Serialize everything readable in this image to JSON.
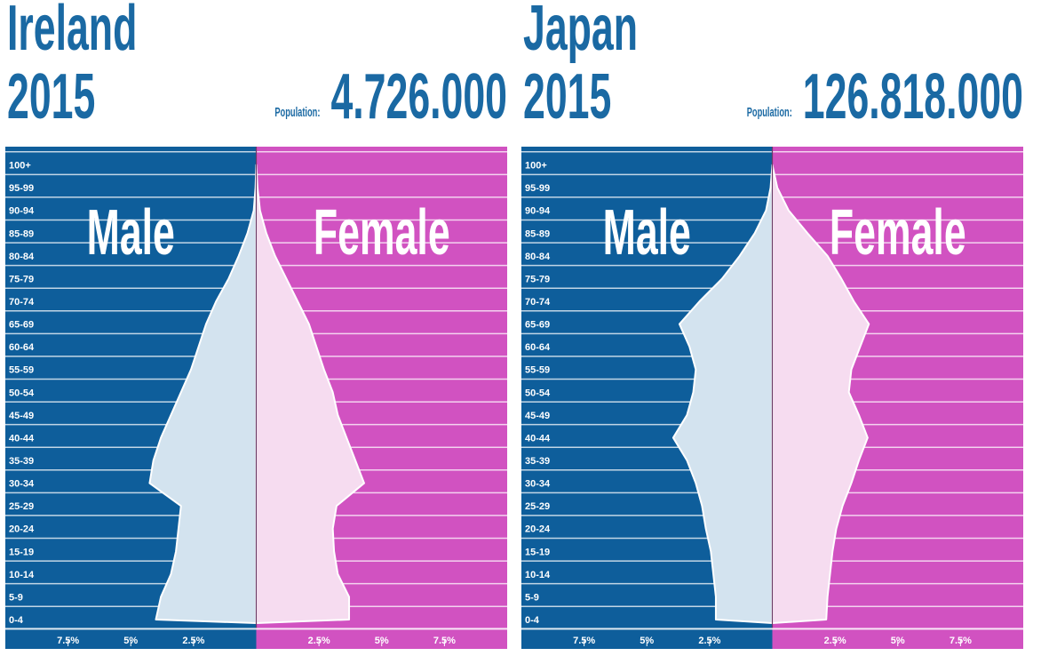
{
  "chart_data": [
    {
      "type": "pyramid",
      "title": "Ireland",
      "subtitle": "2015",
      "population_label": "Population:",
      "population": "4.726.000",
      "categories": [
        "0-4",
        "5-9",
        "10-14",
        "15-19",
        "20-24",
        "25-29",
        "30-34",
        "35-39",
        "40-44",
        "45-49",
        "50-54",
        "55-59",
        "60-64",
        "65-69",
        "70-74",
        "75-79",
        "80-84",
        "85-89",
        "90-94",
        "95-99",
        "100+"
      ],
      "series": [
        {
          "name": "Male",
          "color": "#0e5e9b",
          "fill": "#d3e3ef",
          "values": [
            4.0,
            3.8,
            3.4,
            3.2,
            3.1,
            3.0,
            4.25,
            4.1,
            3.8,
            3.4,
            3.0,
            2.6,
            2.3,
            2.0,
            1.6,
            1.1,
            0.7,
            0.35,
            0.1,
            0.03,
            0
          ]
        },
        {
          "name": "Female",
          "color": "#d152c1",
          "fill": "#f6dcf0",
          "values": [
            3.7,
            3.7,
            3.25,
            3.1,
            3.05,
            3.2,
            4.3,
            3.95,
            3.6,
            3.25,
            3.05,
            2.7,
            2.4,
            2.1,
            1.65,
            1.2,
            0.75,
            0.4,
            0.15,
            0.05,
            0
          ]
        }
      ],
      "xlim": [
        0,
        10
      ],
      "xticks": [
        {
          "value": 7.5,
          "label": "7.5%"
        },
        {
          "value": 5,
          "label": "5%"
        },
        {
          "value": 2.5,
          "label": "2.5%"
        }
      ]
    },
    {
      "type": "pyramid",
      "title": "Japan",
      "subtitle": "2015",
      "population_label": "Population:",
      "population": "126.818.000",
      "categories": [
        "0-4",
        "5-9",
        "10-14",
        "15-19",
        "20-24",
        "25-29",
        "30-34",
        "35-39",
        "40-44",
        "45-49",
        "50-54",
        "55-59",
        "60-64",
        "65-69",
        "70-74",
        "75-79",
        "80-84",
        "85-89",
        "90-94",
        "95-99",
        "100+"
      ],
      "series": [
        {
          "name": "Male",
          "color": "#0e5e9b",
          "fill": "#d3e3ef",
          "values": [
            2.25,
            2.25,
            2.35,
            2.45,
            2.65,
            2.8,
            3.05,
            3.4,
            3.95,
            3.4,
            3.15,
            3.05,
            3.3,
            3.7,
            2.9,
            2.0,
            1.3,
            0.7,
            0.25,
            0.07,
            0
          ]
        },
        {
          "name": "Female",
          "color": "#d152c1",
          "fill": "#f6dcf0",
          "values": [
            2.15,
            2.2,
            2.3,
            2.4,
            2.55,
            2.8,
            3.15,
            3.45,
            3.8,
            3.45,
            3.05,
            3.15,
            3.5,
            3.85,
            3.25,
            2.75,
            2.2,
            1.4,
            0.65,
            0.2,
            0
          ]
        }
      ],
      "xlim": [
        0,
        10
      ],
      "xticks": [
        {
          "value": 7.5,
          "label": "7.5%"
        },
        {
          "value": 5,
          "label": "5%"
        },
        {
          "value": 2.5,
          "label": "2.5%"
        }
      ]
    }
  ]
}
